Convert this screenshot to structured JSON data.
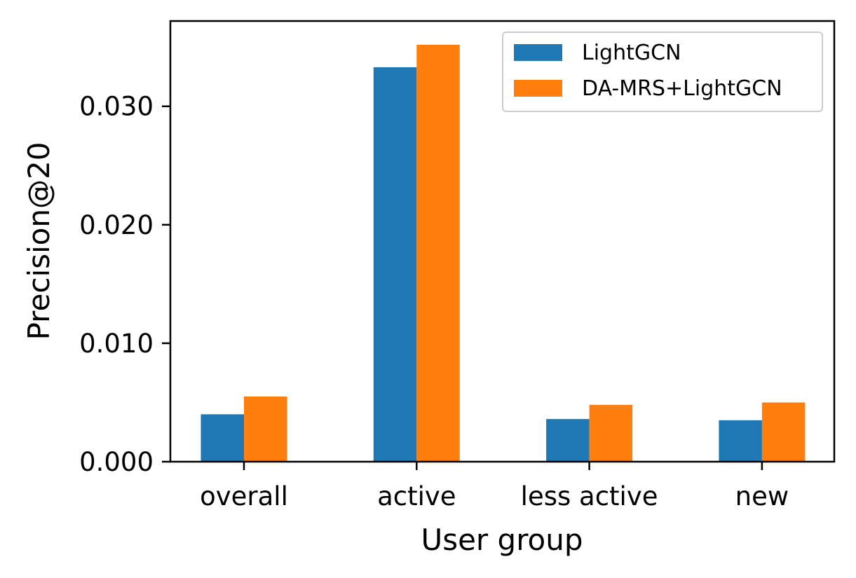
{
  "chart_data": {
    "type": "bar",
    "categories": [
      "overall",
      "active",
      "less active",
      "new"
    ],
    "series": [
      {
        "name": "LightGCN",
        "color": "#1f77b4",
        "values": [
          0.004,
          0.0333,
          0.0036,
          0.0035
        ]
      },
      {
        "name": "DA-MRS+LightGCN",
        "color": "#ff7f0e",
        "values": [
          0.0055,
          0.0352,
          0.0048,
          0.005
        ]
      }
    ],
    "xlabel": "User group",
    "ylabel": "Precision@20",
    "ylim": [
      0,
      0.0372
    ],
    "yticks": [
      0.0,
      0.01,
      0.02,
      0.03
    ],
    "ytick_labels": [
      "0.000",
      "0.010",
      "0.020",
      "0.030"
    ],
    "grid": false,
    "legend_position": "top-right"
  }
}
